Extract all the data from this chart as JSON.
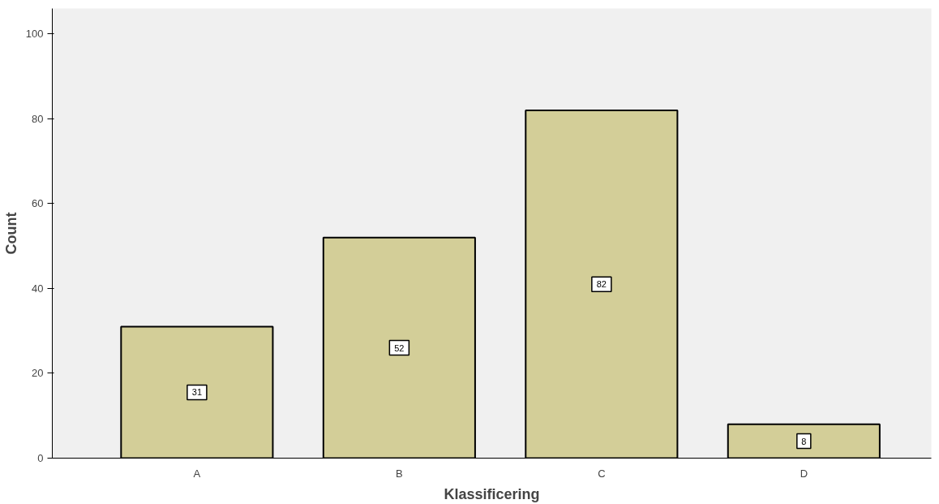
{
  "chart_data": {
    "type": "bar",
    "xlabel": "Klassificering",
    "ylabel": "Count",
    "categories": [
      "A",
      "B",
      "C",
      "D"
    ],
    "values": [
      31,
      52,
      82,
      8
    ],
    "color": "#d3ce98",
    "ylim": [
      0,
      106
    ],
    "yticks": [
      0,
      20,
      40,
      60,
      80,
      100
    ],
    "data_labels": true,
    "grid": false
  }
}
